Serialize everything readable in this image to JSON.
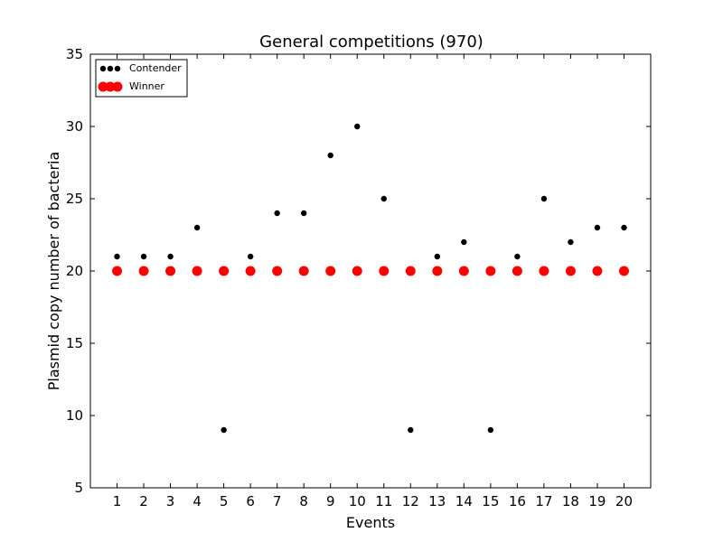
{
  "chart_data": {
    "type": "scatter",
    "title": "General competitions (970)",
    "xlabel": "Events",
    "ylabel": "Plasmid copy number of bacteria",
    "xlim": [
      0,
      21
    ],
    "ylim": [
      5,
      35
    ],
    "x_ticks": [
      "1",
      "2",
      "3",
      "4",
      "5",
      "6",
      "7",
      "8",
      "9",
      "10",
      "11",
      "12",
      "13",
      "14",
      "15",
      "16",
      "17",
      "18",
      "19",
      "20"
    ],
    "y_ticks": [
      "5",
      "10",
      "15",
      "20",
      "25",
      "30",
      "35"
    ],
    "grid": false,
    "legend_position": "top-left",
    "series": [
      {
        "name": "Contender",
        "color": "#000000",
        "marker": "small-dot",
        "x": [
          1,
          2,
          3,
          4,
          5,
          6,
          7,
          8,
          9,
          10,
          11,
          12,
          13,
          14,
          15,
          16,
          17,
          18,
          19,
          20
        ],
        "y": [
          21,
          21,
          21,
          23,
          9,
          21,
          24,
          24,
          28,
          30,
          25,
          9,
          21,
          22,
          9,
          21,
          25,
          22,
          23,
          23
        ]
      },
      {
        "name": "Winner",
        "color": "#ff0000",
        "marker": "large-dot",
        "x": [
          1,
          2,
          3,
          4,
          5,
          6,
          7,
          8,
          9,
          10,
          11,
          12,
          13,
          14,
          15,
          16,
          17,
          18,
          19,
          20
        ],
        "y": [
          20,
          20,
          20,
          20,
          20,
          20,
          20,
          20,
          20,
          20,
          20,
          20,
          20,
          20,
          20,
          20,
          20,
          20,
          20,
          20
        ]
      }
    ]
  }
}
